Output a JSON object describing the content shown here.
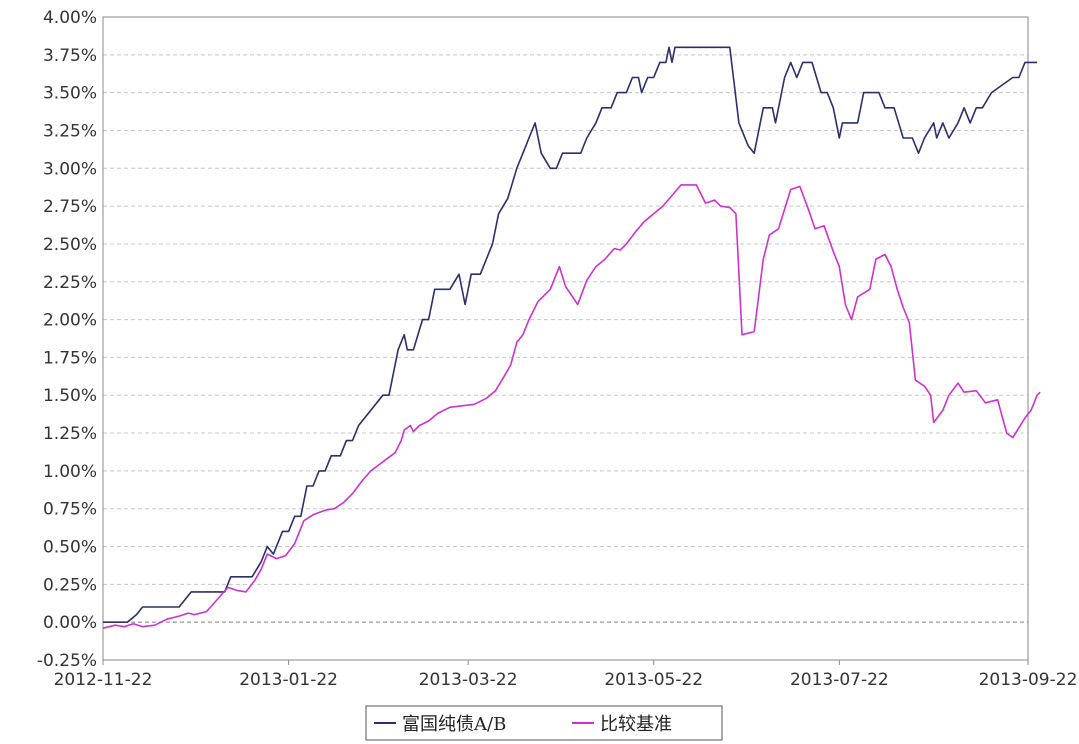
{
  "chart_data": {
    "type": "line",
    "title": "",
    "xlabel": "",
    "ylabel": "",
    "ylim": [
      -0.25,
      4.0
    ],
    "ytick_labels": [
      "-0.25%",
      "0.00%",
      "0.25%",
      "0.50%",
      "0.75%",
      "1.00%",
      "1.25%",
      "1.50%",
      "1.75%",
      "2.00%",
      "2.25%",
      "2.50%",
      "2.75%",
      "3.00%",
      "3.25%",
      "3.50%",
      "3.75%",
      "4.00%"
    ],
    "yticks": [
      -0.25,
      0,
      0.25,
      0.5,
      0.75,
      1.0,
      1.25,
      1.5,
      1.75,
      2.0,
      2.25,
      2.5,
      2.75,
      3.0,
      3.25,
      3.5,
      3.75,
      4.0
    ],
    "xlim": [
      "2012-11-22",
      "2013-09-22"
    ],
    "xtick_labels": [
      "2012-11-22",
      "2013-01-22",
      "2013-03-22",
      "2013-05-22",
      "2013-07-22",
      "2013-09-22"
    ],
    "xticks": [
      "2012-11-22",
      "2013-01-22",
      "2013-03-22",
      "2013-05-22",
      "2013-07-22",
      "2013-09-22"
    ],
    "grid": true,
    "legend_position": "bottom-center",
    "series": [
      {
        "name": "富国纯债A/B",
        "color": "#2b2f6b",
        "points": [
          [
            "2012-11-22",
            0.0
          ],
          [
            "2012-11-30",
            0.0
          ],
          [
            "2012-12-03",
            0.05
          ],
          [
            "2012-12-05",
            0.1
          ],
          [
            "2012-12-12",
            0.1
          ],
          [
            "2012-12-17",
            0.1
          ],
          [
            "2012-12-21",
            0.2
          ],
          [
            "2012-12-28",
            0.2
          ],
          [
            "2013-01-01",
            0.2
          ],
          [
            "2013-01-03",
            0.3
          ],
          [
            "2013-01-10",
            0.3
          ],
          [
            "2013-01-13",
            0.4
          ],
          [
            "2013-01-15",
            0.5
          ],
          [
            "2013-01-17",
            0.45
          ],
          [
            "2013-01-20",
            0.6
          ],
          [
            "2013-01-22",
            0.6
          ],
          [
            "2013-01-24",
            0.7
          ],
          [
            "2013-01-26",
            0.7
          ],
          [
            "2013-01-28",
            0.9
          ],
          [
            "2013-01-30",
            0.9
          ],
          [
            "2013-02-01",
            1.0
          ],
          [
            "2013-02-03",
            1.0
          ],
          [
            "2013-02-05",
            1.1
          ],
          [
            "2013-02-08",
            1.1
          ],
          [
            "2013-02-10",
            1.2
          ],
          [
            "2013-02-12",
            1.2
          ],
          [
            "2013-02-14",
            1.3
          ],
          [
            "2013-02-22",
            1.5
          ],
          [
            "2013-02-24",
            1.5
          ],
          [
            "2013-02-27",
            1.8
          ],
          [
            "2013-03-01",
            1.9
          ],
          [
            "2013-03-02",
            1.8
          ],
          [
            "2013-03-04",
            1.8
          ],
          [
            "2013-03-07",
            2.0
          ],
          [
            "2013-03-09",
            2.0
          ],
          [
            "2013-03-11",
            2.2
          ],
          [
            "2013-03-16",
            2.2
          ],
          [
            "2013-03-19",
            2.3
          ],
          [
            "2013-03-21",
            2.1
          ],
          [
            "2013-03-23",
            2.3
          ],
          [
            "2013-03-26",
            2.3
          ],
          [
            "2013-03-28",
            2.4
          ],
          [
            "2013-03-30",
            2.5
          ],
          [
            "2013-04-01",
            2.7
          ],
          [
            "2013-04-04",
            2.8
          ],
          [
            "2013-04-07",
            3.0
          ],
          [
            "2013-04-09",
            3.1
          ],
          [
            "2013-04-11",
            3.2
          ],
          [
            "2013-04-13",
            3.3
          ],
          [
            "2013-04-15",
            3.1
          ],
          [
            "2013-04-18",
            3.0
          ],
          [
            "2013-04-20",
            3.0
          ],
          [
            "2013-04-22",
            3.1
          ],
          [
            "2013-04-28",
            3.1
          ],
          [
            "2013-04-30",
            3.2
          ],
          [
            "2013-05-03",
            3.3
          ],
          [
            "2013-05-05",
            3.4
          ],
          [
            "2013-05-08",
            3.4
          ],
          [
            "2013-05-10",
            3.5
          ],
          [
            "2013-05-13",
            3.5
          ],
          [
            "2013-05-15",
            3.6
          ],
          [
            "2013-05-17",
            3.6
          ],
          [
            "2013-05-18",
            3.5
          ],
          [
            "2013-05-20",
            3.6
          ],
          [
            "2013-05-22",
            3.6
          ],
          [
            "2013-05-24",
            3.7
          ],
          [
            "2013-05-26",
            3.7
          ],
          [
            "2013-05-27",
            3.8
          ],
          [
            "2013-05-28",
            3.7
          ],
          [
            "2013-05-29",
            3.8
          ],
          [
            "2013-06-16",
            3.8
          ],
          [
            "2013-06-19",
            3.3
          ],
          [
            "2013-06-22",
            3.15
          ],
          [
            "2013-06-24",
            3.1
          ],
          [
            "2013-06-27",
            3.4
          ],
          [
            "2013-06-30",
            3.4
          ],
          [
            "2013-07-01",
            3.3
          ],
          [
            "2013-07-04",
            3.6
          ],
          [
            "2013-07-06",
            3.7
          ],
          [
            "2013-07-08",
            3.6
          ],
          [
            "2013-07-10",
            3.7
          ],
          [
            "2013-07-13",
            3.7
          ],
          [
            "2013-07-16",
            3.5
          ],
          [
            "2013-07-18",
            3.5
          ],
          [
            "2013-07-20",
            3.4
          ],
          [
            "2013-07-22",
            3.2
          ],
          [
            "2013-07-23",
            3.3
          ],
          [
            "2013-07-28",
            3.3
          ],
          [
            "2013-07-30",
            3.5
          ],
          [
            "2013-08-04",
            3.5
          ],
          [
            "2013-08-06",
            3.4
          ],
          [
            "2013-08-09",
            3.4
          ],
          [
            "2013-08-12",
            3.2
          ],
          [
            "2013-08-15",
            3.2
          ],
          [
            "2013-08-17",
            3.1
          ],
          [
            "2013-08-19",
            3.2
          ],
          [
            "2013-08-22",
            3.3
          ],
          [
            "2013-08-23",
            3.2
          ],
          [
            "2013-08-25",
            3.3
          ],
          [
            "2013-08-27",
            3.2
          ],
          [
            "2013-08-30",
            3.3
          ],
          [
            "2013-09-01",
            3.4
          ],
          [
            "2013-09-03",
            3.3
          ],
          [
            "2013-09-05",
            3.4
          ],
          [
            "2013-09-07",
            3.4
          ],
          [
            "2013-09-10",
            3.5
          ],
          [
            "2013-09-17",
            3.6
          ],
          [
            "2013-09-19",
            3.6
          ],
          [
            "2013-09-21",
            3.7
          ],
          [
            "2013-09-25",
            3.7
          ]
        ]
      },
      {
        "name": "比较基准",
        "color": "#cc33cc",
        "points": [
          [
            "2012-11-22",
            -0.04
          ],
          [
            "2012-11-26",
            -0.02
          ],
          [
            "2012-11-29",
            -0.03
          ],
          [
            "2012-12-02",
            -0.01
          ],
          [
            "2012-12-05",
            -0.03
          ],
          [
            "2012-12-09",
            -0.02
          ],
          [
            "2012-12-13",
            0.02
          ],
          [
            "2012-12-17",
            0.04
          ],
          [
            "2012-12-20",
            0.06
          ],
          [
            "2012-12-22",
            0.05
          ],
          [
            "2012-12-26",
            0.07
          ],
          [
            "2012-12-30",
            0.16
          ],
          [
            "2013-01-02",
            0.23
          ],
          [
            "2013-01-05",
            0.21
          ],
          [
            "2013-01-08",
            0.2
          ],
          [
            "2013-01-11",
            0.28
          ],
          [
            "2013-01-13",
            0.35
          ],
          [
            "2013-01-15",
            0.45
          ],
          [
            "2013-01-18",
            0.42
          ],
          [
            "2013-01-21",
            0.44
          ],
          [
            "2013-01-24",
            0.52
          ],
          [
            "2013-01-27",
            0.67
          ],
          [
            "2013-01-30",
            0.71
          ],
          [
            "2013-02-03",
            0.74
          ],
          [
            "2013-02-06",
            0.75
          ],
          [
            "2013-02-09",
            0.79
          ],
          [
            "2013-02-12",
            0.85
          ],
          [
            "2013-02-15",
            0.93
          ],
          [
            "2013-02-18",
            1.0
          ],
          [
            "2013-02-22",
            1.06
          ],
          [
            "2013-02-26",
            1.12
          ],
          [
            "2013-02-28",
            1.2
          ],
          [
            "2013-03-01",
            1.27
          ],
          [
            "2013-03-03",
            1.3
          ],
          [
            "2013-03-04",
            1.26
          ],
          [
            "2013-03-06",
            1.3
          ],
          [
            "2013-03-09",
            1.33
          ],
          [
            "2013-03-12",
            1.38
          ],
          [
            "2013-03-16",
            1.42
          ],
          [
            "2013-03-20",
            1.43
          ],
          [
            "2013-03-24",
            1.44
          ],
          [
            "2013-03-28",
            1.48
          ],
          [
            "2013-03-31",
            1.53
          ],
          [
            "2013-04-03",
            1.63
          ],
          [
            "2013-04-05",
            1.7
          ],
          [
            "2013-04-07",
            1.85
          ],
          [
            "2013-04-09",
            1.9
          ],
          [
            "2013-04-11",
            2.0
          ],
          [
            "2013-04-14",
            2.12
          ],
          [
            "2013-04-16",
            2.16
          ],
          [
            "2013-04-18",
            2.2
          ],
          [
            "2013-04-21",
            2.35
          ],
          [
            "2013-04-23",
            2.22
          ],
          [
            "2013-04-27",
            2.1
          ],
          [
            "2013-04-30",
            2.26
          ],
          [
            "2013-05-03",
            2.35
          ],
          [
            "2013-05-06",
            2.4
          ],
          [
            "2013-05-09",
            2.47
          ],
          [
            "2013-05-11",
            2.46
          ],
          [
            "2013-05-13",
            2.5
          ],
          [
            "2013-05-16",
            2.58
          ],
          [
            "2013-05-19",
            2.65
          ],
          [
            "2013-05-22",
            2.7
          ],
          [
            "2013-05-25",
            2.75
          ],
          [
            "2013-05-28",
            2.82
          ],
          [
            "2013-05-31",
            2.89
          ],
          [
            "2013-06-05",
            2.89
          ],
          [
            "2013-06-08",
            2.77
          ],
          [
            "2013-06-11",
            2.79
          ],
          [
            "2013-06-13",
            2.75
          ],
          [
            "2013-06-16",
            2.74
          ],
          [
            "2013-06-18",
            2.7
          ],
          [
            "2013-06-20",
            1.9
          ],
          [
            "2013-06-24",
            1.92
          ],
          [
            "2013-06-27",
            2.4
          ],
          [
            "2013-06-29",
            2.56
          ],
          [
            "2013-07-02",
            2.6
          ],
          [
            "2013-07-06",
            2.86
          ],
          [
            "2013-07-09",
            2.88
          ],
          [
            "2013-07-12",
            2.72
          ],
          [
            "2013-07-14",
            2.6
          ],
          [
            "2013-07-17",
            2.62
          ],
          [
            "2013-07-20",
            2.45
          ],
          [
            "2013-07-22",
            2.35
          ],
          [
            "2013-07-24",
            2.1
          ],
          [
            "2013-07-26",
            2.0
          ],
          [
            "2013-07-28",
            2.15
          ],
          [
            "2013-08-01",
            2.2
          ],
          [
            "2013-08-03",
            2.4
          ],
          [
            "2013-08-06",
            2.43
          ],
          [
            "2013-08-08",
            2.35
          ],
          [
            "2013-08-10",
            2.2
          ],
          [
            "2013-08-12",
            2.08
          ],
          [
            "2013-08-14",
            1.98
          ],
          [
            "2013-08-16",
            1.6
          ],
          [
            "2013-08-19",
            1.56
          ],
          [
            "2013-08-21",
            1.5
          ],
          [
            "2013-08-22",
            1.32
          ],
          [
            "2013-08-25",
            1.4
          ],
          [
            "2013-08-27",
            1.5
          ],
          [
            "2013-08-30",
            1.58
          ],
          [
            "2013-09-01",
            1.52
          ],
          [
            "2013-09-05",
            1.53
          ],
          [
            "2013-09-08",
            1.45
          ],
          [
            "2013-09-12",
            1.47
          ],
          [
            "2013-09-15",
            1.25
          ],
          [
            "2013-09-17",
            1.22
          ],
          [
            "2013-09-21",
            1.35
          ],
          [
            "2013-09-23",
            1.4
          ],
          [
            "2013-09-25",
            1.5
          ],
          [
            "2013-09-26",
            1.52
          ]
        ]
      }
    ]
  }
}
